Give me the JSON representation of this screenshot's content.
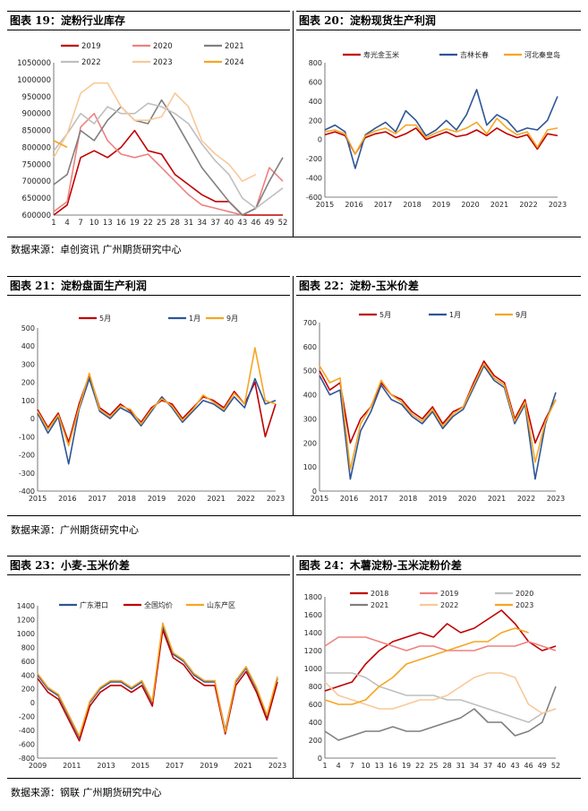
{
  "headers": {
    "c19": "图表 19：淀粉行业库存",
    "c20": "图表 20：淀粉现货生产利润",
    "c21": "图表 21：淀粉盘面生产利润",
    "c22": "图表 22：淀粉-玉米价差",
    "c23": "图表 23：小麦-玉米价差",
    "c24": "图表 24：木薯淀粉-玉米淀粉价差"
  },
  "sources": {
    "row1": "数据来源：卓创资讯 广州期货研究中心",
    "row2": "数据来源：广州期货研究中心",
    "row3": "数据来源：钢联 广州期货研究中心"
  },
  "colors": {
    "red": "#c00000",
    "blue": "#2e5597",
    "orange": "#f5a623",
    "pink": "#f08080",
    "gray": "#808080",
    "lightgray": "#bfbfbf",
    "peach": "#f8c999",
    "darkgray": "#7f7f7f"
  },
  "chart_data": [
    {
      "id": "c19",
      "type": "line",
      "x": [
        1,
        4,
        7,
        10,
        13,
        16,
        19,
        22,
        25,
        28,
        31,
        34,
        37,
        40,
        43,
        46,
        49,
        52
      ],
      "xticks": [
        1,
        4,
        7,
        10,
        13,
        16,
        19,
        22,
        25,
        28,
        31,
        34,
        37,
        40,
        43,
        46,
        49,
        52
      ],
      "ylim": [
        600000,
        1050000
      ],
      "yticks": [
        600000,
        650000,
        700000,
        750000,
        800000,
        850000,
        900000,
        950000,
        1000000,
        1050000
      ],
      "series": [
        {
          "name": "2019",
          "color": "#c00000",
          "values": [
            600000,
            630000,
            770000,
            790000,
            770000,
            800000,
            850000,
            790000,
            780000,
            720000,
            690000,
            660000,
            640000,
            640000,
            600000,
            600000,
            600000,
            600000
          ]
        },
        {
          "name": "2020",
          "color": "#f08080",
          "values": [
            610000,
            640000,
            860000,
            900000,
            820000,
            780000,
            770000,
            780000,
            740000,
            700000,
            660000,
            630000,
            620000,
            610000,
            600000,
            620000,
            740000,
            700000
          ]
        },
        {
          "name": "2021",
          "color": "#808080",
          "values": [
            690000,
            720000,
            850000,
            820000,
            880000,
            920000,
            880000,
            870000,
            940000,
            880000,
            810000,
            740000,
            690000,
            640000,
            600000,
            620000,
            700000,
            770000
          ]
        },
        {
          "name": "2022",
          "color": "#bfbfbf",
          "values": [
            790000,
            840000,
            900000,
            870000,
            920000,
            900000,
            900000,
            930000,
            920000,
            900000,
            870000,
            810000,
            760000,
            720000,
            650000,
            620000,
            650000,
            680000
          ]
        },
        {
          "name": "2023",
          "color": "#f8c999",
          "values": [
            770000,
            840000,
            960000,
            990000,
            990000,
            920000,
            880000,
            880000,
            890000,
            960000,
            920000,
            820000,
            780000,
            750000,
            700000,
            720000,
            null,
            null
          ]
        },
        {
          "name": "2024",
          "color": "#f5a623",
          "values": [
            820000,
            800000,
            null,
            null,
            null,
            null,
            null,
            null,
            null,
            null,
            null,
            null,
            null,
            null,
            null,
            null,
            null,
            null
          ]
        }
      ]
    },
    {
      "id": "c20",
      "type": "line",
      "xticks": [
        "2015",
        "2016",
        "2017",
        "2018",
        "2019",
        "2020",
        "2021",
        "2022",
        "2023"
      ],
      "ylim": [
        -600,
        800
      ],
      "yticks": [
        -600,
        -400,
        -200,
        0,
        200,
        400,
        600,
        800
      ],
      "series": [
        {
          "name": "寿光金玉米",
          "color": "#c00000",
          "values": [
            50,
            80,
            40,
            -150,
            20,
            60,
            80,
            20,
            60,
            120,
            0,
            40,
            80,
            30,
            50,
            100,
            40,
            120,
            60,
            20,
            50,
            -100,
            60,
            40
          ]
        },
        {
          "name": "吉林长春",
          "color": "#2e5597",
          "values": [
            100,
            150,
            80,
            -300,
            50,
            120,
            180,
            80,
            300,
            200,
            40,
            100,
            200,
            100,
            260,
            520,
            150,
            260,
            200,
            80,
            120,
            100,
            200,
            450
          ]
        },
        {
          "name": "河北秦皇岛",
          "color": "#f5a623",
          "values": [
            80,
            100,
            60,
            -150,
            40,
            90,
            120,
            60,
            150,
            150,
            20,
            70,
            110,
            80,
            120,
            180,
            60,
            220,
            120,
            50,
            80,
            -80,
            100,
            120
          ]
        }
      ]
    },
    {
      "id": "c21",
      "type": "line",
      "xticks": [
        "2015",
        "2016",
        "2017",
        "2018",
        "2019",
        "2020",
        "2021",
        "2022",
        "2023"
      ],
      "ylim": [
        -400,
        500
      ],
      "yticks": [
        -400,
        -300,
        -200,
        -100,
        0,
        100,
        200,
        300,
        400,
        500
      ],
      "series": [
        {
          "name": "5月",
          "color": "#c00000",
          "values": [
            50,
            -50,
            30,
            -130,
            80,
            240,
            60,
            20,
            80,
            40,
            -20,
            60,
            100,
            80,
            0,
            60,
            120,
            100,
            60,
            150,
            80,
            200,
            -100,
            80
          ]
        },
        {
          "name": "1月",
          "color": "#2e5597",
          "values": [
            30,
            -80,
            10,
            -250,
            50,
            220,
            40,
            0,
            60,
            30,
            -40,
            40,
            120,
            60,
            -20,
            40,
            100,
            80,
            40,
            120,
            60,
            220,
            80,
            100
          ]
        },
        {
          "name": "9月",
          "color": "#f5a623",
          "values": [
            40,
            -60,
            20,
            -150,
            60,
            250,
            50,
            10,
            70,
            50,
            -30,
            50,
            110,
            70,
            -10,
            50,
            130,
            90,
            50,
            140,
            80,
            390,
            100,
            80
          ]
        }
      ]
    },
    {
      "id": "c22",
      "type": "line",
      "xticks": [
        "2015",
        "2016",
        "2017",
        "2018",
        "2019",
        "2020",
        "2021",
        "2022",
        "2023"
      ],
      "ylim": [
        0,
        700
      ],
      "yticks": [
        0,
        100,
        200,
        300,
        400,
        500,
        600,
        700
      ],
      "series": [
        {
          "name": "5月",
          "color": "#c00000",
          "values": [
            500,
            420,
            450,
            200,
            300,
            350,
            450,
            400,
            380,
            330,
            300,
            350,
            280,
            330,
            350,
            450,
            540,
            480,
            450,
            300,
            380,
            200,
            300,
            380
          ]
        },
        {
          "name": "1月",
          "color": "#2e5597",
          "values": [
            480,
            400,
            420,
            50,
            250,
            330,
            440,
            380,
            360,
            310,
            280,
            330,
            260,
            310,
            340,
            430,
            520,
            460,
            430,
            280,
            360,
            50,
            280,
            410
          ]
        },
        {
          "name": "9月",
          "color": "#f5a623",
          "values": [
            520,
            450,
            470,
            90,
            280,
            350,
            460,
            400,
            370,
            320,
            290,
            340,
            270,
            320,
            350,
            440,
            530,
            470,
            440,
            290,
            370,
            120,
            290,
            380
          ]
        }
      ]
    },
    {
      "id": "c23",
      "type": "line",
      "xticks": [
        "2009",
        "2011",
        "2013",
        "2015",
        "2017",
        "2019",
        "2021",
        "2023"
      ],
      "ylim": [
        -800,
        1400
      ],
      "yticks": [
        -800,
        -600,
        -400,
        -200,
        0,
        200,
        400,
        600,
        800,
        1000,
        1200,
        1400
      ],
      "series": [
        {
          "name": "广东港口",
          "color": "#2e5597",
          "values": [
            400,
            200,
            100,
            -200,
            -500,
            0,
            200,
            300,
            300,
            200,
            300,
            0,
            1100,
            700,
            600,
            400,
            300,
            300,
            -400,
            300,
            500,
            200,
            -200,
            350
          ]
        },
        {
          "name": "全国均价",
          "color": "#c00000",
          "values": [
            350,
            150,
            50,
            -250,
            -550,
            -50,
            150,
            250,
            250,
            150,
            250,
            -50,
            1050,
            650,
            550,
            350,
            250,
            250,
            -450,
            250,
            450,
            150,
            -250,
            300
          ]
        },
        {
          "name": "山东产区",
          "color": "#f5a623",
          "values": [
            420,
            220,
            120,
            -180,
            -480,
            20,
            220,
            320,
            320,
            220,
            320,
            20,
            1150,
            720,
            620,
            420,
            320,
            320,
            -420,
            320,
            520,
            220,
            -180,
            380
          ]
        }
      ]
    },
    {
      "id": "c24",
      "type": "line",
      "x": [
        1,
        4,
        7,
        10,
        13,
        16,
        19,
        22,
        25,
        28,
        31,
        34,
        37,
        40,
        43,
        46,
        49,
        52
      ],
      "xticks": [
        1,
        4,
        7,
        10,
        13,
        16,
        19,
        22,
        25,
        28,
        31,
        34,
        37,
        40,
        43,
        46,
        49,
        52
      ],
      "ylim": [
        0,
        1800
      ],
      "yticks": [
        0,
        200,
        400,
        600,
        800,
        1000,
        1200,
        1400,
        1600,
        1800
      ],
      "series": [
        {
          "name": "2018",
          "color": "#c00000",
          "values": [
            750,
            800,
            850,
            1050,
            1200,
            1300,
            1350,
            1400,
            1350,
            1500,
            1400,
            1450,
            1550,
            1650,
            1500,
            1300,
            1200,
            1250
          ]
        },
        {
          "name": "2019",
          "color": "#f08080",
          "values": [
            1250,
            1350,
            1350,
            1350,
            1300,
            1250,
            1200,
            1250,
            1250,
            1200,
            1200,
            1200,
            1250,
            1250,
            1250,
            1300,
            1250,
            1200
          ]
        },
        {
          "name": "2020",
          "color": "#bfbfbf",
          "values": [
            950,
            950,
            950,
            900,
            800,
            750,
            700,
            700,
            700,
            650,
            650,
            600,
            550,
            500,
            450,
            400,
            500,
            550
          ]
        },
        {
          "name": "2021",
          "color": "#7f7f7f",
          "values": [
            300,
            200,
            250,
            300,
            300,
            350,
            300,
            300,
            350,
            400,
            450,
            550,
            400,
            400,
            250,
            300,
            400,
            800
          ]
        },
        {
          "name": "2022",
          "color": "#f8c999",
          "values": [
            850,
            700,
            650,
            600,
            550,
            550,
            600,
            650,
            650,
            700,
            800,
            900,
            950,
            950,
            900,
            600,
            500,
            550
          ]
        },
        {
          "name": "2023",
          "color": "#f5a623",
          "values": [
            650,
            600,
            600,
            650,
            800,
            900,
            1050,
            1100,
            1150,
            1200,
            1250,
            1300,
            1300,
            1400,
            1450,
            1400,
            null,
            null
          ]
        }
      ]
    }
  ]
}
